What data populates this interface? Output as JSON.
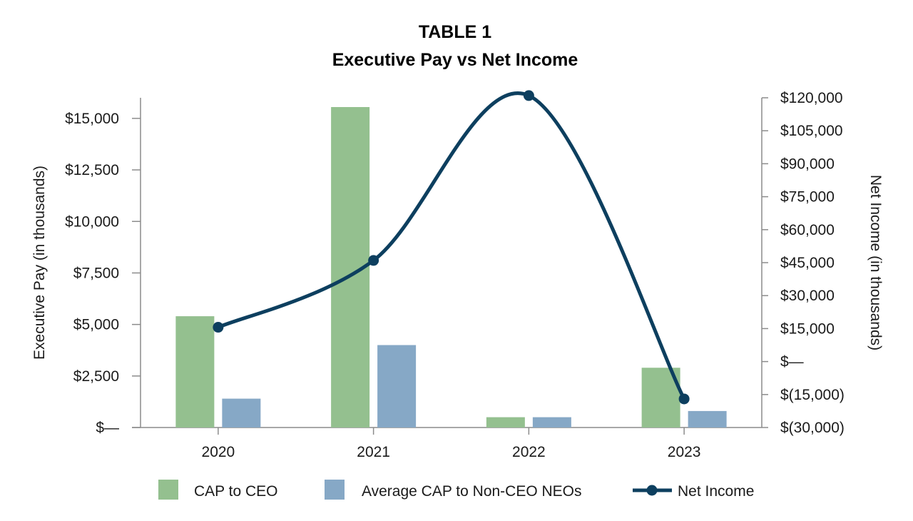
{
  "chart_data": {
    "type": "bar",
    "title": "TABLE 1",
    "subtitle": "Executive Pay vs Net Income",
    "categories": [
      "2020",
      "2021",
      "2022",
      "2023"
    ],
    "series": [
      {
        "name": "CAP to CEO",
        "type": "bar",
        "axis": "left",
        "color": "#94c08f",
        "values": [
          5400,
          15550,
          500,
          2900
        ]
      },
      {
        "name": "Average CAP to Non-CEO NEOs",
        "type": "bar",
        "axis": "left",
        "color": "#86a8c6",
        "values": [
          1400,
          4000,
          500,
          800
        ]
      },
      {
        "name": "Net Income",
        "type": "line",
        "axis": "right",
        "color": "#0d3f5f",
        "smooth": true,
        "values": [
          15600,
          46000,
          121000,
          -17000
        ]
      }
    ],
    "y_left": {
      "label": "Executive Pay (in thousands)",
      "ylim": [
        0,
        16000
      ],
      "ticks": [
        0,
        2500,
        5000,
        7500,
        10000,
        12500,
        15000
      ],
      "tick_labels": [
        "$—",
        "$2,500",
        "$5,000",
        "$7,500",
        "$10,000",
        "$12,500",
        "$15,000"
      ]
    },
    "y_right": {
      "label": "Net Income  (in thousands)",
      "ylim": [
        -30000,
        120000
      ],
      "ticks": [
        -30000,
        -15000,
        0,
        15000,
        30000,
        45000,
        60000,
        75000,
        90000,
        105000,
        120000
      ],
      "tick_labels": [
        "$(30,000)",
        "$(15,000)",
        "$—",
        "$15,000",
        "$30,000",
        "$45,000",
        "$60,000",
        "$75,000",
        "$90,000",
        "$105,000",
        "$120,000"
      ]
    },
    "legend_position": "bottom",
    "grid": false
  }
}
